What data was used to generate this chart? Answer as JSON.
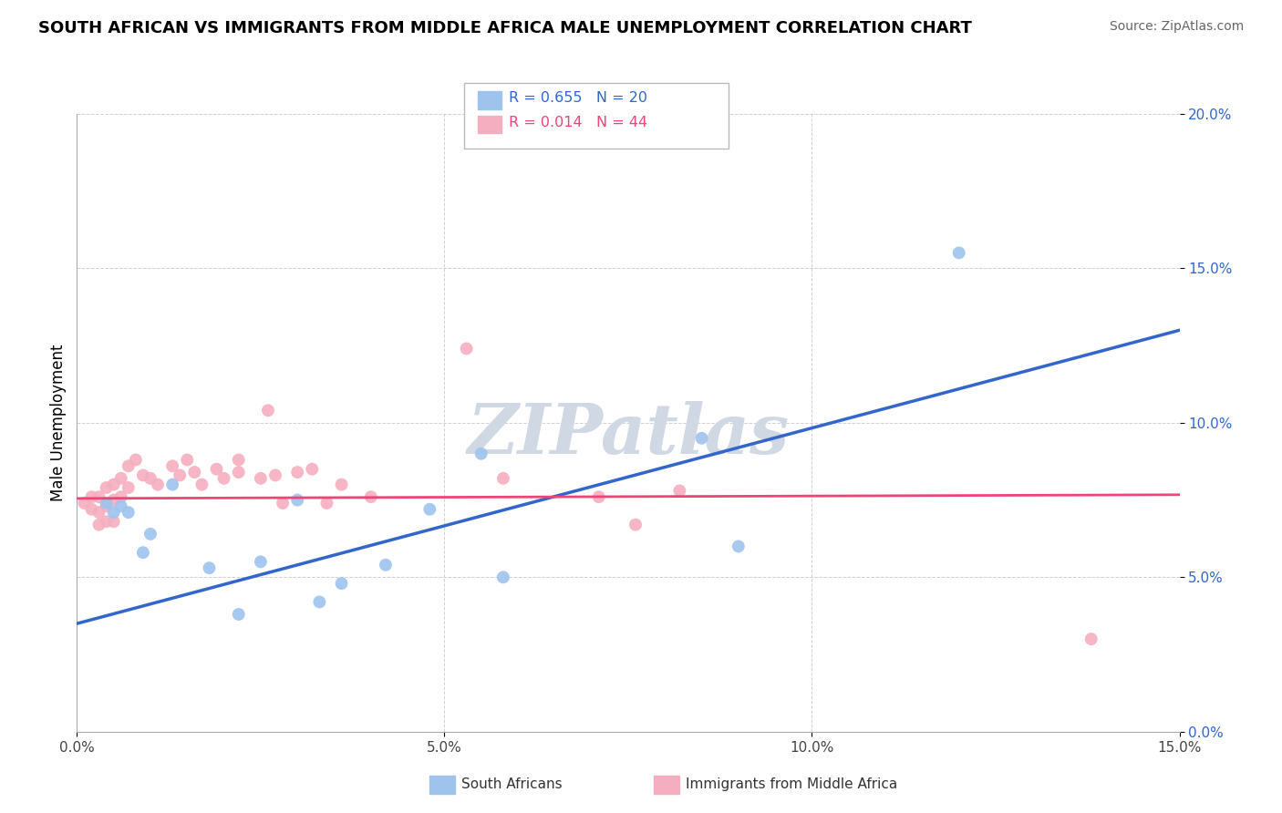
{
  "title": "SOUTH AFRICAN VS IMMIGRANTS FROM MIDDLE AFRICA MALE UNEMPLOYMENT CORRELATION CHART",
  "source": "Source: ZipAtlas.com",
  "ylabel": "Male Unemployment",
  "xlim": [
    0.0,
    0.15
  ],
  "ylim": [
    0.0,
    0.2
  ],
  "blue_R": "R = 0.655",
  "blue_N": "N = 20",
  "pink_R": "R = 0.014",
  "pink_N": "N = 44",
  "blue_label": "South Africans",
  "pink_label": "Immigrants from Middle Africa",
  "blue_color": "#9ec4ee",
  "pink_color": "#f5aec0",
  "blue_line_color": "#3366cc",
  "pink_line_color": "#ee4477",
  "watermark": "ZIPatlas",
  "watermark_color": "#d0d8e4",
  "blue_points": [
    [
      0.004,
      0.074
    ],
    [
      0.005,
      0.071
    ],
    [
      0.006,
      0.073
    ],
    [
      0.007,
      0.071
    ],
    [
      0.009,
      0.058
    ],
    [
      0.01,
      0.064
    ],
    [
      0.013,
      0.08
    ],
    [
      0.018,
      0.053
    ],
    [
      0.022,
      0.038
    ],
    [
      0.025,
      0.055
    ],
    [
      0.03,
      0.075
    ],
    [
      0.033,
      0.042
    ],
    [
      0.036,
      0.048
    ],
    [
      0.042,
      0.054
    ],
    [
      0.048,
      0.072
    ],
    [
      0.055,
      0.09
    ],
    [
      0.058,
      0.05
    ],
    [
      0.085,
      0.095
    ],
    [
      0.09,
      0.06
    ],
    [
      0.12,
      0.155
    ]
  ],
  "pink_points": [
    [
      0.001,
      0.074
    ],
    [
      0.002,
      0.076
    ],
    [
      0.002,
      0.072
    ],
    [
      0.003,
      0.076
    ],
    [
      0.003,
      0.071
    ],
    [
      0.003,
      0.067
    ],
    [
      0.004,
      0.079
    ],
    [
      0.004,
      0.073
    ],
    [
      0.004,
      0.068
    ],
    [
      0.005,
      0.08
    ],
    [
      0.005,
      0.075
    ],
    [
      0.005,
      0.068
    ],
    [
      0.006,
      0.082
    ],
    [
      0.006,
      0.076
    ],
    [
      0.007,
      0.086
    ],
    [
      0.007,
      0.079
    ],
    [
      0.008,
      0.088
    ],
    [
      0.009,
      0.083
    ],
    [
      0.01,
      0.082
    ],
    [
      0.011,
      0.08
    ],
    [
      0.013,
      0.086
    ],
    [
      0.014,
      0.083
    ],
    [
      0.015,
      0.088
    ],
    [
      0.016,
      0.084
    ],
    [
      0.017,
      0.08
    ],
    [
      0.019,
      0.085
    ],
    [
      0.02,
      0.082
    ],
    [
      0.022,
      0.088
    ],
    [
      0.022,
      0.084
    ],
    [
      0.025,
      0.082
    ],
    [
      0.026,
      0.104
    ],
    [
      0.027,
      0.083
    ],
    [
      0.028,
      0.074
    ],
    [
      0.03,
      0.084
    ],
    [
      0.032,
      0.085
    ],
    [
      0.034,
      0.074
    ],
    [
      0.036,
      0.08
    ],
    [
      0.04,
      0.076
    ],
    [
      0.053,
      0.124
    ],
    [
      0.058,
      0.082
    ],
    [
      0.071,
      0.076
    ],
    [
      0.076,
      0.067
    ],
    [
      0.082,
      0.078
    ],
    [
      0.138,
      0.03
    ]
  ],
  "blue_line_intercept": 0.035,
  "blue_line_slope": 0.633,
  "pink_line_intercept": 0.0755,
  "pink_line_slope": 0.008
}
